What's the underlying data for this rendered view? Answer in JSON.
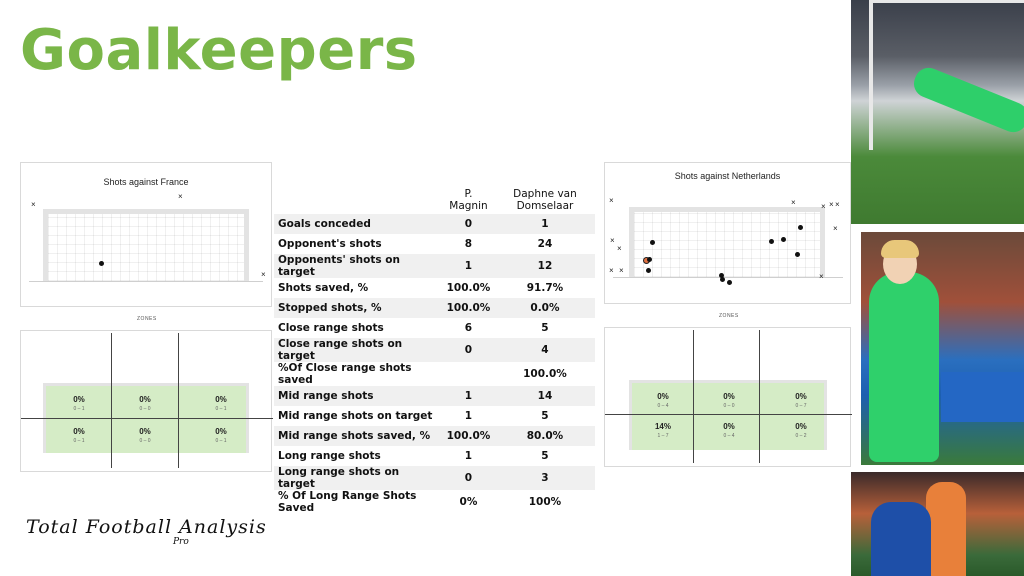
{
  "slide": {
    "title": "Goalkeepers"
  },
  "left_shots": {
    "title": "Shots against France",
    "zones_label": "ZONES",
    "zones": [
      {
        "pct": "0%",
        "count": "0 – 1"
      },
      {
        "pct": "0%",
        "count": "0 – 0"
      },
      {
        "pct": "0%",
        "count": "0 – 1"
      },
      {
        "pct": "0%",
        "count": "0 – 1"
      },
      {
        "pct": "0%",
        "count": "0 – 0"
      },
      {
        "pct": "0%",
        "count": "0 – 1"
      }
    ]
  },
  "right_shots": {
    "title": "Shots against Netherlands",
    "zones_label": "ZONES",
    "zones": [
      {
        "pct": "0%",
        "count": "0 – 4"
      },
      {
        "pct": "0%",
        "count": "0 – 0"
      },
      {
        "pct": "0%",
        "count": "0 – 7"
      },
      {
        "pct": "14%",
        "count": "1 – 7"
      },
      {
        "pct": "0%",
        "count": "0 – 4"
      },
      {
        "pct": "0%",
        "count": "0 – 2"
      }
    ]
  },
  "stats": {
    "columns": [
      "P. Magnin",
      "Daphne van Domselaar"
    ],
    "rows": [
      {
        "label": "Goals conceded",
        "a": "0",
        "b": "1"
      },
      {
        "label": "Opponent's shots",
        "a": "8",
        "b": "24"
      },
      {
        "label": "Opponents' shots  on target",
        "a": "1",
        "b": "12"
      },
      {
        "label": "Shots saved, %",
        "a": "100.0%",
        "b": "91.7%"
      },
      {
        "label": "Stopped shots, %",
        "a": "100.0%",
        "b": "0.0%"
      },
      {
        "label": "Close range shots",
        "a": "6",
        "b": "5"
      },
      {
        "label": "Close range shots on target",
        "a": "0",
        "b": "4"
      },
      {
        "label": "%Of Close range shots saved",
        "a": "",
        "b": "100.0%"
      },
      {
        "label": "Mid range shots",
        "a": "1",
        "b": "14"
      },
      {
        "label": "Mid range shots on target",
        "a": "1",
        "b": "5"
      },
      {
        "label": "Mid range shots saved, %",
        "a": "100.0%",
        "b": "80.0%"
      },
      {
        "label": "Long range shots",
        "a": "1",
        "b": "5"
      },
      {
        "label": "Long range shots on target",
        "a": "0",
        "b": "3"
      },
      {
        "label": "% Of Long Range Shots Saved",
        "a": "0%",
        "b": "100%"
      }
    ]
  },
  "logo": {
    "main": "Total Football Analysis",
    "sub": "Pro"
  }
}
